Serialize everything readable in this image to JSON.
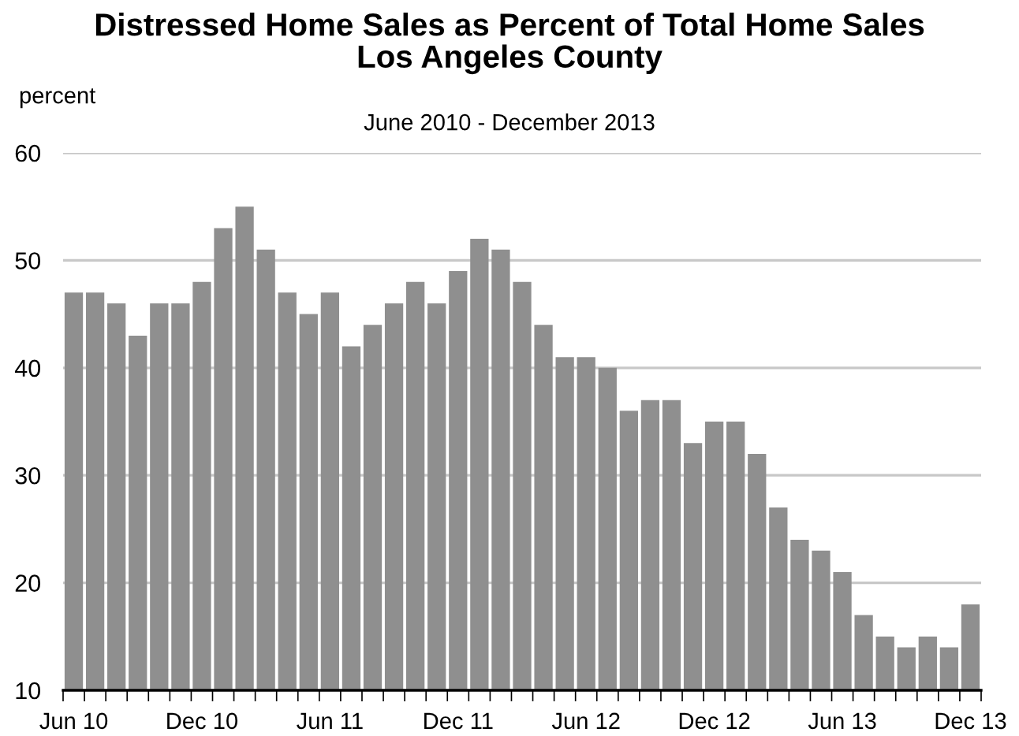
{
  "chart_data": {
    "type": "bar",
    "title": "Distressed Home Sales as Percent of Total Home Sales\nLos Angeles County",
    "subtitle": "June 2010 - December 2013",
    "ylabel": "percent",
    "categories": [
      "Jun 10",
      null,
      null,
      null,
      null,
      null,
      "Dec 10",
      null,
      null,
      null,
      null,
      null,
      "Jun 11",
      null,
      null,
      null,
      null,
      null,
      "Dec 11",
      null,
      null,
      null,
      null,
      null,
      "Jun 12",
      null,
      null,
      null,
      null,
      null,
      "Dec 12",
      null,
      null,
      null,
      null,
      null,
      "Jun 13",
      null,
      null,
      null,
      null,
      null,
      "Dec 13"
    ],
    "values": [
      47,
      47,
      46,
      43,
      46,
      46,
      48,
      53,
      55,
      51,
      47,
      45,
      47,
      42,
      44,
      46,
      48,
      46,
      49,
      52,
      51,
      48,
      44,
      41,
      41,
      40,
      36,
      37,
      37,
      33,
      35,
      35,
      32,
      27,
      24,
      23,
      21,
      17,
      15,
      14,
      15,
      14,
      18
    ],
    "color": "#8f8f8f",
    "ylim": [
      10,
      60
    ],
    "yticks": [
      10,
      20,
      30,
      40,
      50,
      60
    ],
    "grid": "y",
    "legend": false
  }
}
